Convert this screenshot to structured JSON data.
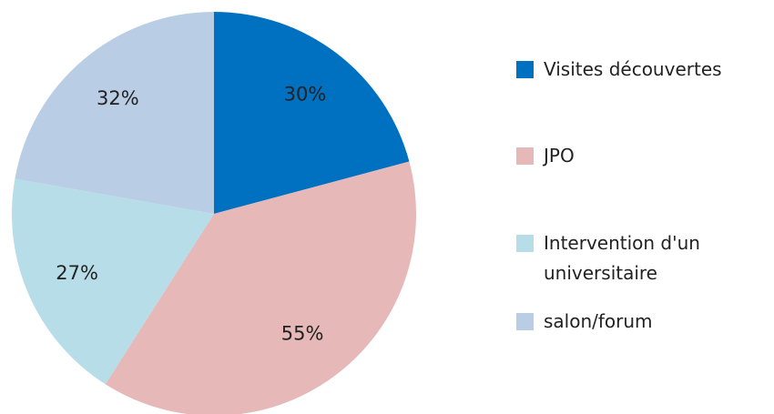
{
  "chart_data": {
    "type": "pie",
    "categories": [
      "Visites découvertes",
      "JPO",
      "Intervention d'un universitaire",
      "salon/forum"
    ],
    "values": [
      30,
      55,
      27,
      32
    ],
    "value_labels": [
      "30%",
      "55%",
      "27%",
      "32%"
    ],
    "colors": [
      "#0070c0",
      "#e6b9b8",
      "#b7dde8",
      "#b9cde5"
    ],
    "legend": "right"
  }
}
